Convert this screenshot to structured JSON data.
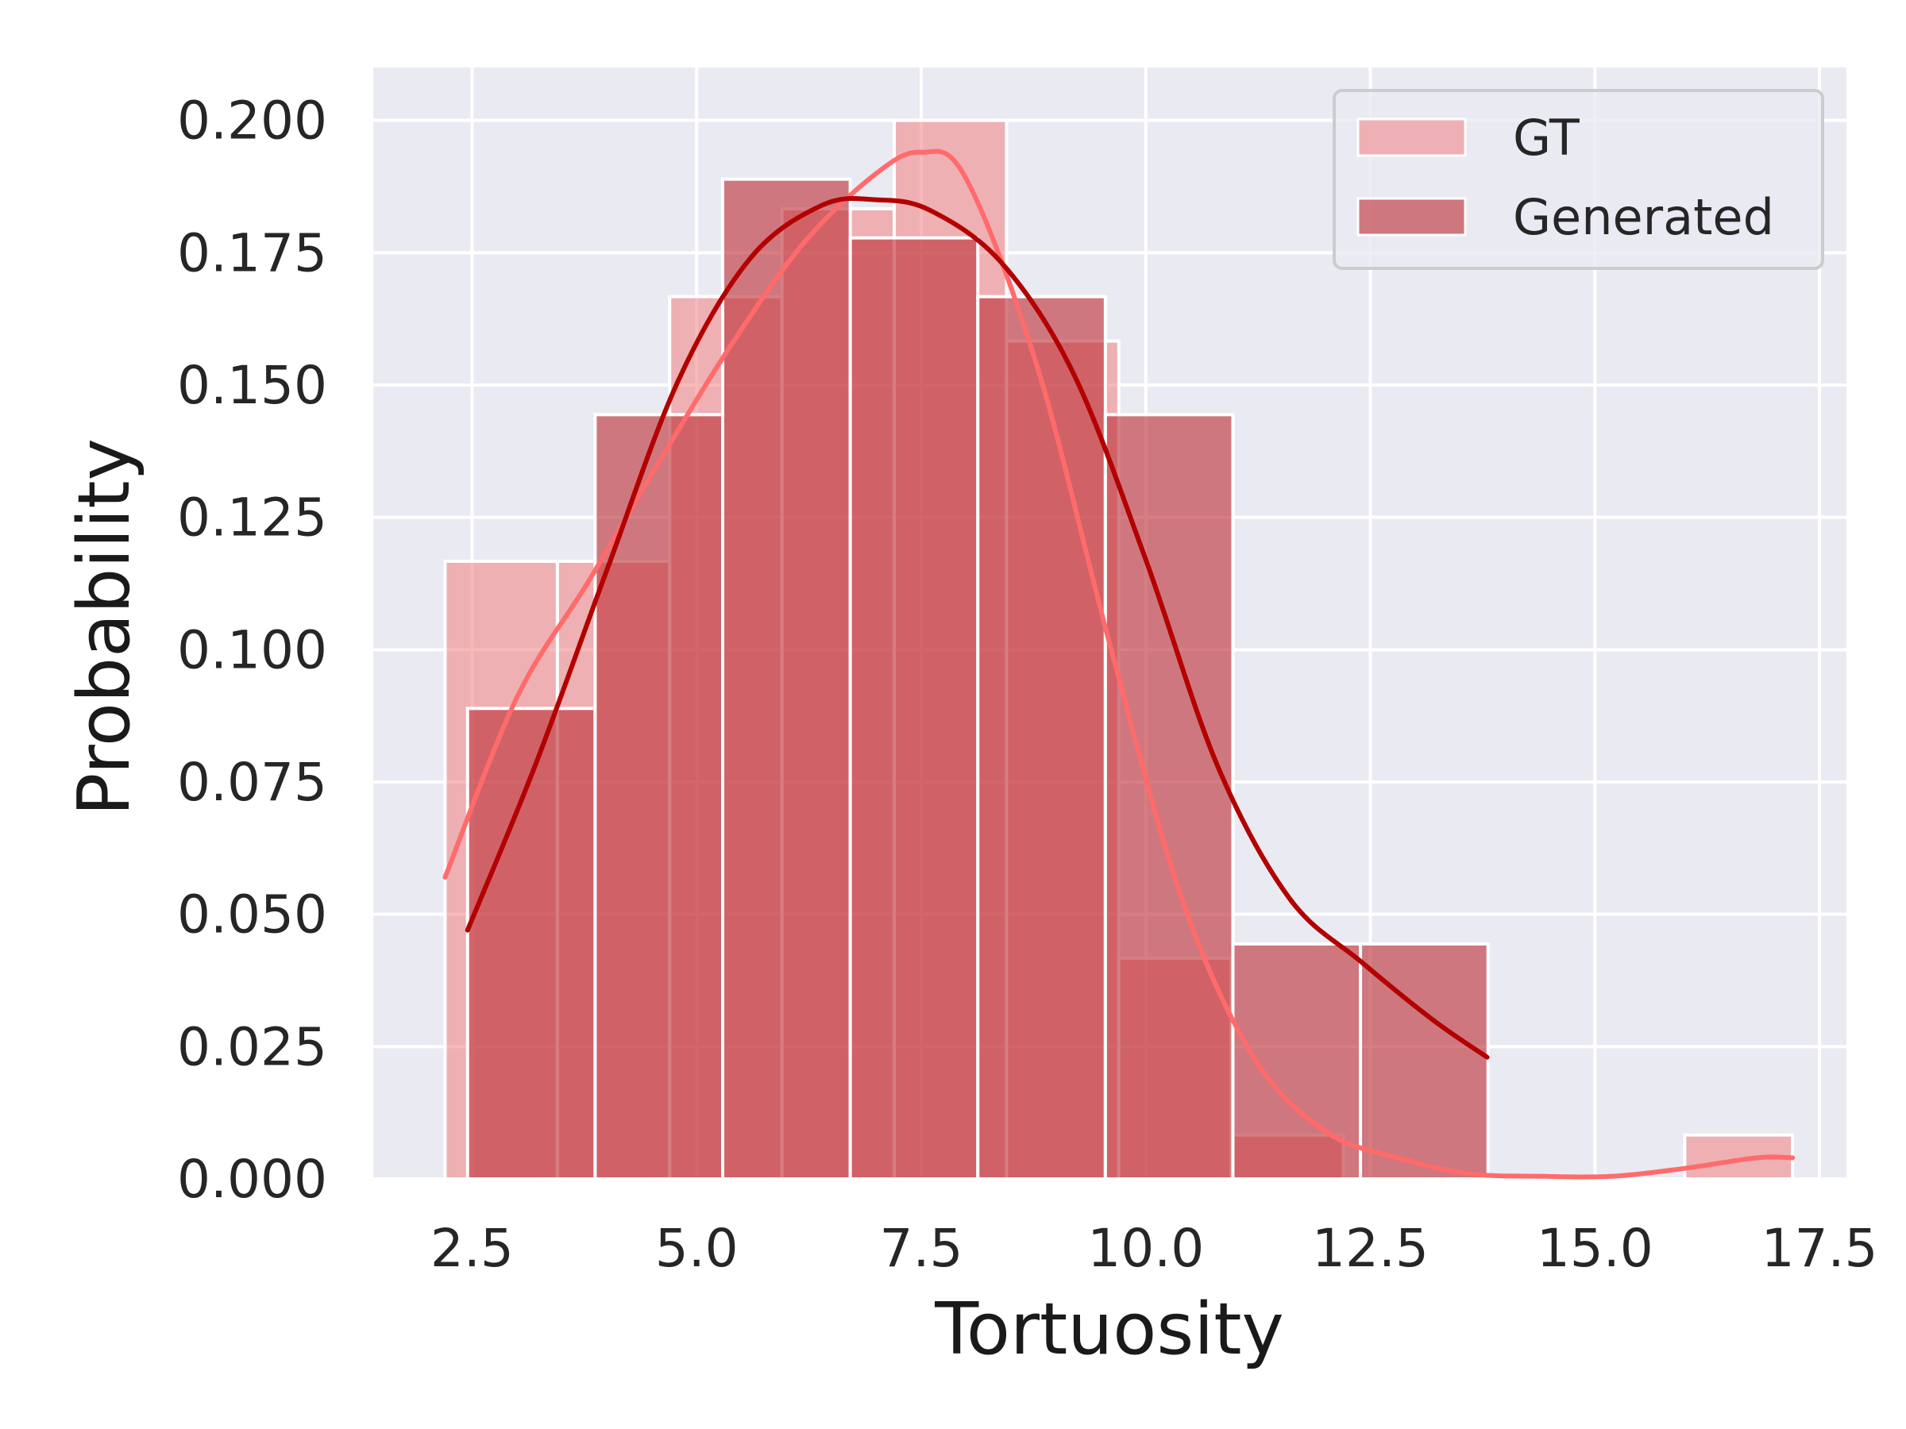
{
  "chart_data": {
    "type": "bar",
    "xlabel": "Tortuosity",
    "ylabel": "Probability",
    "xlim": [
      1.4,
      17.8
    ],
    "ylim": [
      0,
      0.21
    ],
    "x_ticks": [
      2.5,
      5.0,
      7.5,
      10.0,
      12.5,
      15.0,
      17.5
    ],
    "y_ticks": [
      0.0,
      0.025,
      0.05,
      0.075,
      0.1,
      0.125,
      0.15,
      0.175,
      0.2
    ],
    "x_tick_labels": [
      "2.5",
      "5.0",
      "7.5",
      "10.0",
      "12.5",
      "15.0",
      "17.5"
    ],
    "y_tick_labels": [
      "0.000",
      "0.025",
      "0.050",
      "0.075",
      "0.100",
      "0.125",
      "0.150",
      "0.175",
      "0.200"
    ],
    "grid": true,
    "legend_placement": "top-right",
    "series": [
      {
        "name": "GT",
        "color": "#f08080",
        "kde_color": "#ff6b6b",
        "opacity": 0.55,
        "bins": [
          {
            "x0": 2.2,
            "x1": 3.45,
            "y": 0.1167
          },
          {
            "x0": 3.45,
            "x1": 4.7,
            "y": 0.1167
          },
          {
            "x0": 4.7,
            "x1": 5.95,
            "y": 0.1667
          },
          {
            "x0": 5.95,
            "x1": 7.2,
            "y": 0.1833
          },
          {
            "x0": 7.2,
            "x1": 8.45,
            "y": 0.2
          },
          {
            "x0": 8.45,
            "x1": 9.7,
            "y": 0.1583
          },
          {
            "x0": 9.7,
            "x1": 10.95,
            "y": 0.0417
          },
          {
            "x0": 10.95,
            "x1": 12.2,
            "y": 0.0083
          },
          {
            "x0": 16.0,
            "x1": 17.2,
            "y": 0.0083
          }
        ],
        "kde": {
          "x": [
            2.2,
            3.0,
            3.8,
            4.6,
            5.4,
            6.2,
            7.0,
            7.5,
            8.0,
            8.8,
            9.6,
            10.4,
            11.2,
            12.0,
            12.8,
            13.6,
            14.4,
            15.2,
            16.0,
            16.8,
            17.2
          ],
          "y": [
            0.057,
            0.091,
            0.113,
            0.136,
            0.158,
            0.177,
            0.19,
            0.194,
            0.189,
            0.153,
            0.101,
            0.053,
            0.023,
            0.009,
            0.004,
            0.001,
            0.0005,
            0.0005,
            0.002,
            0.004,
            0.004
          ]
        }
      },
      {
        "name": "Generated",
        "color": "#c0393f",
        "kde_color": "#b30000",
        "opacity": 0.65,
        "bins": [
          {
            "x0": 2.45,
            "x1": 3.87,
            "y": 0.0889
          },
          {
            "x0": 3.87,
            "x1": 5.29,
            "y": 0.1444
          },
          {
            "x0": 5.29,
            "x1": 6.71,
            "y": 0.1889
          },
          {
            "x0": 6.71,
            "x1": 8.13,
            "y": 0.1778
          },
          {
            "x0": 8.13,
            "x1": 9.55,
            "y": 0.1667
          },
          {
            "x0": 9.55,
            "x1": 10.97,
            "y": 0.1444
          },
          {
            "x0": 10.97,
            "x1": 12.39,
            "y": 0.0444
          },
          {
            "x0": 12.39,
            "x1": 13.81,
            "y": 0.0444
          }
        ],
        "kde": {
          "x": [
            2.45,
            3.2,
            4.0,
            4.8,
            5.6,
            6.4,
            7.0,
            7.6,
            8.4,
            9.2,
            10.0,
            10.8,
            11.6,
            12.4,
            13.2,
            13.8
          ],
          "y": [
            0.047,
            0.078,
            0.115,
            0.151,
            0.174,
            0.184,
            0.185,
            0.183,
            0.173,
            0.152,
            0.117,
            0.078,
            0.053,
            0.041,
            0.03,
            0.023
          ]
        }
      }
    ]
  }
}
